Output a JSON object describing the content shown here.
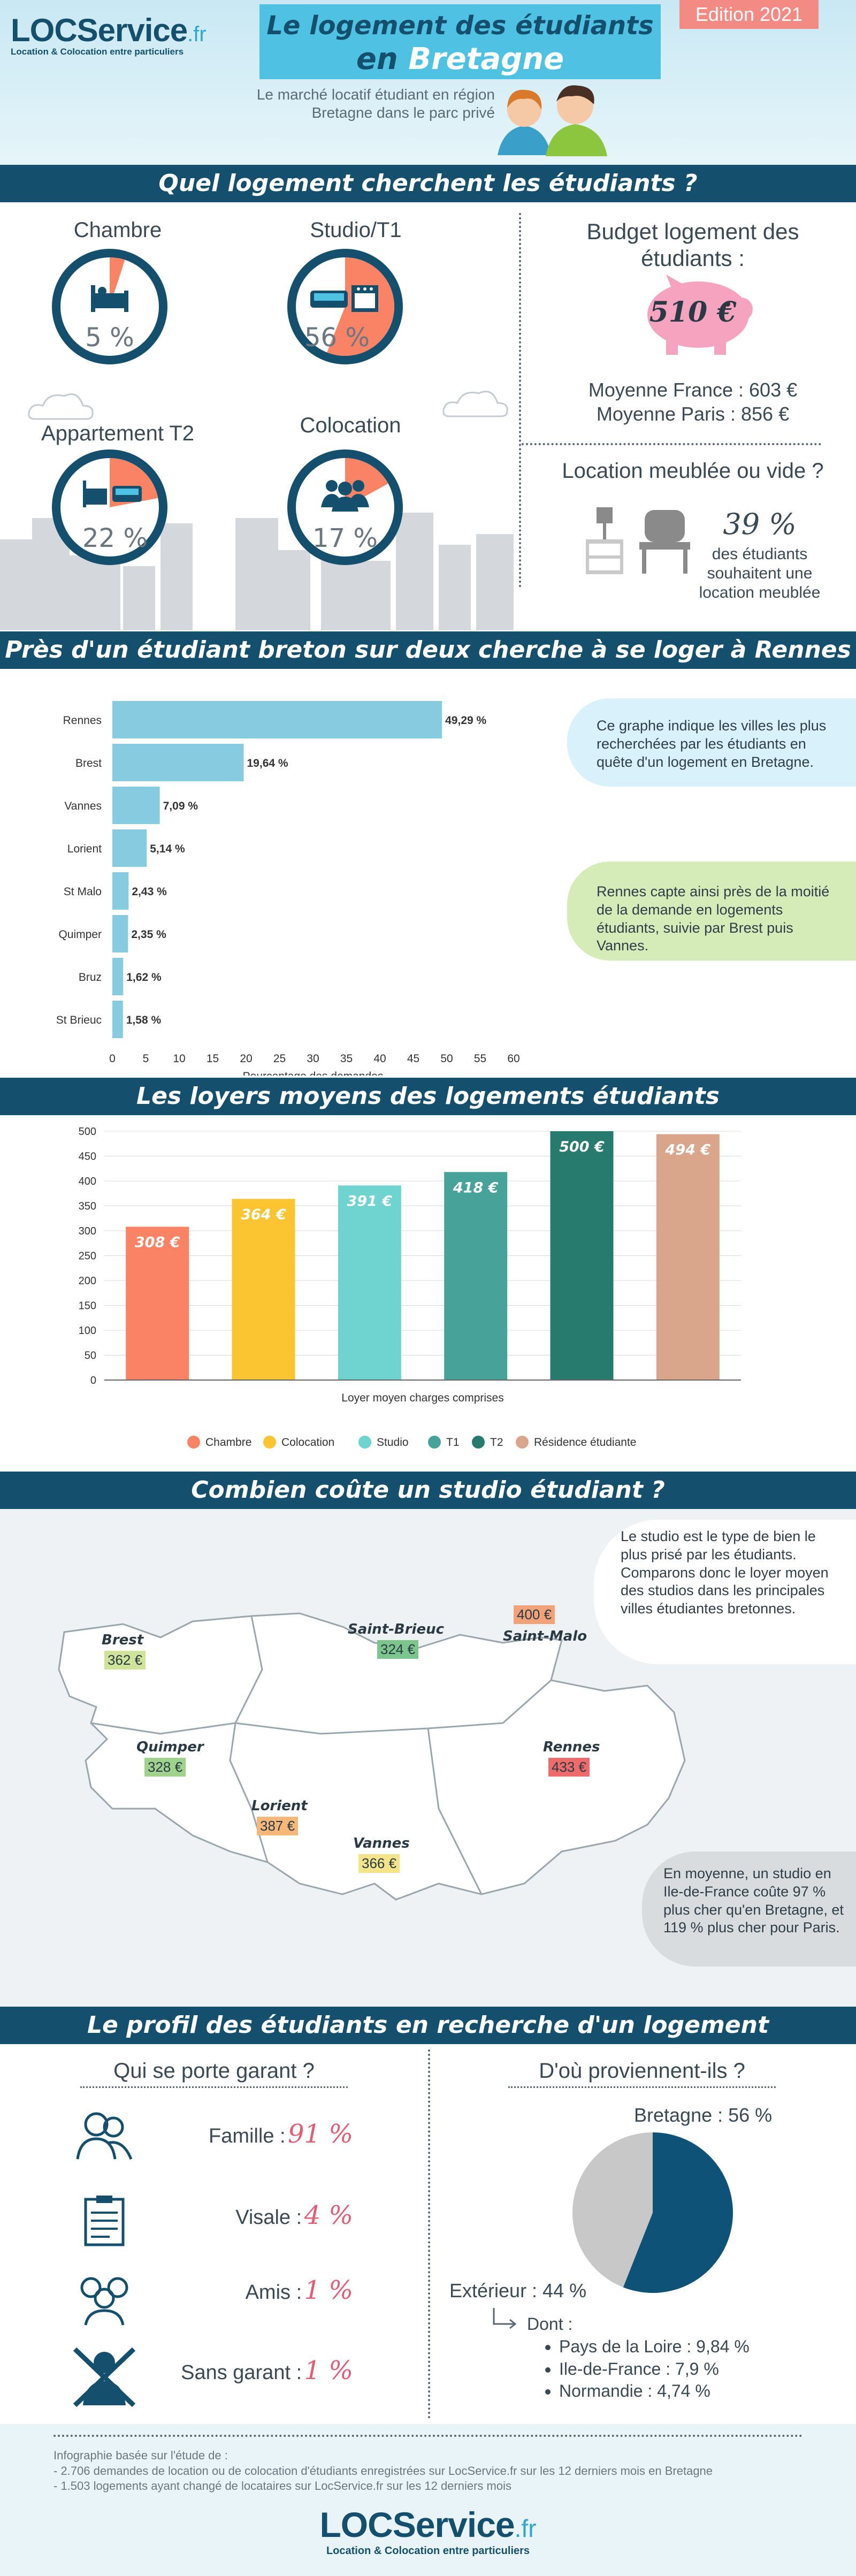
{
  "header": {
    "logo_main": "LOCService",
    "logo_tld": ".fr",
    "logo_tagline": "Location & Colocation entre particuliers",
    "title_line1": "Le logement des étudiants",
    "title_line2_prefix": "en",
    "title_line2_highlight": "Bretagne",
    "edition": "Edition 2021",
    "subtitle_line1": "Le marché locatif étudiant en région",
    "subtitle_line2": "Bretagne dans le parc privé"
  },
  "section1": {
    "title": "Quel logement cherchent les étudiants ?",
    "types": [
      {
        "label": "Chambre",
        "pct_text": "5 %",
        "value": 5
      },
      {
        "label": "Studio/T1",
        "pct_text": "56 %",
        "value": 56
      },
      {
        "label": "Appartement T2",
        "pct_text": "22 %",
        "value": 22
      },
      {
        "label": "Colocation",
        "pct_text": "17 %",
        "value": 17
      }
    ],
    "budget_title_l1": "Budget logement des",
    "budget_title_l2": "étudiants :",
    "budget_value": "510 €",
    "budget_fr": "Moyenne France : 603 €",
    "budget_paris": "Moyenne Paris : 856 €",
    "meuble_title": "Location meublée ou vide ?",
    "meuble_pct": "39 %",
    "meuble_text_l1": "des étudiants",
    "meuble_text_l2": "souhaitent une",
    "meuble_text_l3": "location meublée"
  },
  "section2": {
    "title": "Près d'un étudiant breton sur deux cherche à se loger à Rennes",
    "bubble1": "Ce graphe indique les villes les plus recherchées par les étudiants en quête d'un logement en Bretagne.",
    "bubble2": "Rennes capte ainsi près de la moitié de la demande en logements étudiants, suivie par Brest puis Vannes."
  },
  "section3": {
    "title": "Les loyers moyens des logements étudiants"
  },
  "section4": {
    "title": "Combien coûte un studio étudiant ?",
    "bubble1": "Le studio est le type de bien le plus prisé par les étudiants. Comparons donc le loyer moyen des studios dans les principales villes étudiantes bretonnes.",
    "bubble2": "En moyenne, un studio en Ile-de-France coûte 97 % plus cher qu'en Bretagne, et 119 % plus cher pour Paris.",
    "cities": [
      {
        "name": "Brest",
        "price": "362 €",
        "color": "#cfe39a"
      },
      {
        "name": "Saint-Brieuc",
        "price": "324 €",
        "color": "#7cc58d"
      },
      {
        "name": "Saint-Malo",
        "price": "400 €",
        "color": "#f2a279"
      },
      {
        "name": "Quimper",
        "price": "328 €",
        "color": "#9fd38d"
      },
      {
        "name": "Rennes",
        "price": "433 €",
        "color": "#ee6b6b"
      },
      {
        "name": "Lorient",
        "price": "387 €",
        "color": "#f6b879"
      },
      {
        "name": "Vannes",
        "price": "366 €",
        "color": "#f3e48a"
      }
    ]
  },
  "section5": {
    "title": "Le profil des étudiants en recherche d'un logement",
    "garant_title": "Qui se porte garant ?",
    "garants": [
      {
        "label": "Famille :",
        "pct": "91 %"
      },
      {
        "label": "Visale :",
        "pct": "4 %"
      },
      {
        "label": "Amis :",
        "pct": "1 %"
      },
      {
        "label": "Sans garant :",
        "pct": "1 %"
      }
    ],
    "origin_title": "D'où proviennent-ils ?",
    "origin_bretagne": "Bretagne : 56 %",
    "origin_exterieur": "Extérieur : 44 %",
    "origin_dont": "Dont :",
    "origin_list": [
      "Pays de la Loire : 9,84 %",
      "Ile-de-France : 7,9 %",
      "Normandie : 4,74 %"
    ],
    "origin_colors": {
      "bretagne": "#0f5278",
      "exterieur": "#c8c8c8"
    }
  },
  "footer": {
    "source_l1": "Infographie basée sur l'étude de :",
    "source_l2": "- 2.706 demandes de location ou de colocation d'étudiants enregistrées sur LocService.fr sur les 12 derniers mois en Bretagne",
    "source_l3": "- 1.503 logements ayant changé de locataires sur LocService.fr sur les 12 derniers mois",
    "logo_main": "LOCService",
    "logo_tld": ".fr",
    "logo_tagline": "Location & Colocation entre particuliers"
  },
  "chart_data": [
    {
      "type": "bar",
      "orientation": "horizontal",
      "categories": [
        "Rennes",
        "Brest",
        "Vannes",
        "Lorient",
        "St Malo",
        "Quimper",
        "Bruz",
        "St Brieuc"
      ],
      "values": [
        49.29,
        19.64,
        7.09,
        5.14,
        2.43,
        2.35,
        1.62,
        1.58
      ],
      "value_labels": [
        "49,29 %",
        "19,64 %",
        "7,09 %",
        "5,14 %",
        "2,43 %",
        "2,35 %",
        "1,62 %",
        "1,58 %"
      ],
      "xlabel": "Pourcentage des demandes",
      "xlim": [
        0,
        60
      ],
      "xticks": [
        "0",
        "5",
        "10",
        "15",
        "20",
        "25",
        "30",
        "35",
        "40",
        "45",
        "50",
        "55",
        "60"
      ],
      "color": "#86cbe0"
    },
    {
      "type": "bar",
      "categories": [
        "Chambre",
        "Colocation",
        "Studio",
        "T1",
        "T2",
        "Résidence étudiante"
      ],
      "values": [
        308,
        364,
        391,
        418,
        500,
        494
      ],
      "value_labels": [
        "308 €",
        "364 €",
        "391 €",
        "418 €",
        "500 €",
        "494 €"
      ],
      "colors": [
        "#fa8365",
        "#fbc531",
        "#6fd3cf",
        "#47a39a",
        "#277b6e",
        "#d9a68b"
      ],
      "xlabel": "Loyer moyen charges comprises",
      "ylim": [
        0,
        500
      ],
      "yticks": [
        "0",
        "50",
        "100",
        "150",
        "200",
        "250",
        "300",
        "350",
        "400",
        "450",
        "500"
      ],
      "legend": "bottom"
    },
    {
      "type": "pie",
      "labels": [
        "Bretagne",
        "Extérieur"
      ],
      "values": [
        56,
        44
      ],
      "colors": [
        "#0f5278",
        "#c8c8c8"
      ]
    }
  ]
}
